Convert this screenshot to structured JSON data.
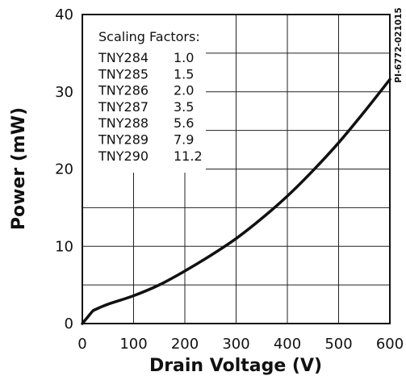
{
  "chart_data": {
    "type": "line",
    "xlabel": "Drain Voltage (V)",
    "ylabel": "Power (mW)",
    "figure_id": "PI-6772-021015",
    "xlim": [
      0,
      600
    ],
    "ylim": [
      0,
      40
    ],
    "x_ticks": [
      "0",
      "100",
      "200",
      "300",
      "400",
      "500",
      "600"
    ],
    "y_ticks": [
      "0",
      "10",
      "20",
      "30",
      "40"
    ],
    "grid": true,
    "series": [
      {
        "x": [
          0,
          10,
          20,
          25,
          50,
          100,
          150,
          200,
          250,
          300,
          350,
          400,
          450,
          500,
          550,
          600
        ],
        "y": [
          0,
          0.8,
          1.6,
          1.8,
          2.5,
          3.6,
          5.0,
          6.8,
          8.8,
          11.0,
          13.6,
          16.5,
          19.8,
          23.4,
          27.4,
          31.6
        ]
      }
    ],
    "legend_table": {
      "title": "Scaling Factors:",
      "rows": [
        {
          "device": "TNY284",
          "factor": "1.0"
        },
        {
          "device": "TNY285",
          "factor": "1.5"
        },
        {
          "device": "TNY286",
          "factor": "2.0"
        },
        {
          "device": "TNY287",
          "factor": "3.5"
        },
        {
          "device": "TNY288",
          "factor": "5.6"
        },
        {
          "device": "TNY289",
          "factor": "7.9"
        },
        {
          "device": "TNY290",
          "factor": "11.2"
        }
      ]
    },
    "line_color": "#111111",
    "grid_color": "#222222"
  }
}
